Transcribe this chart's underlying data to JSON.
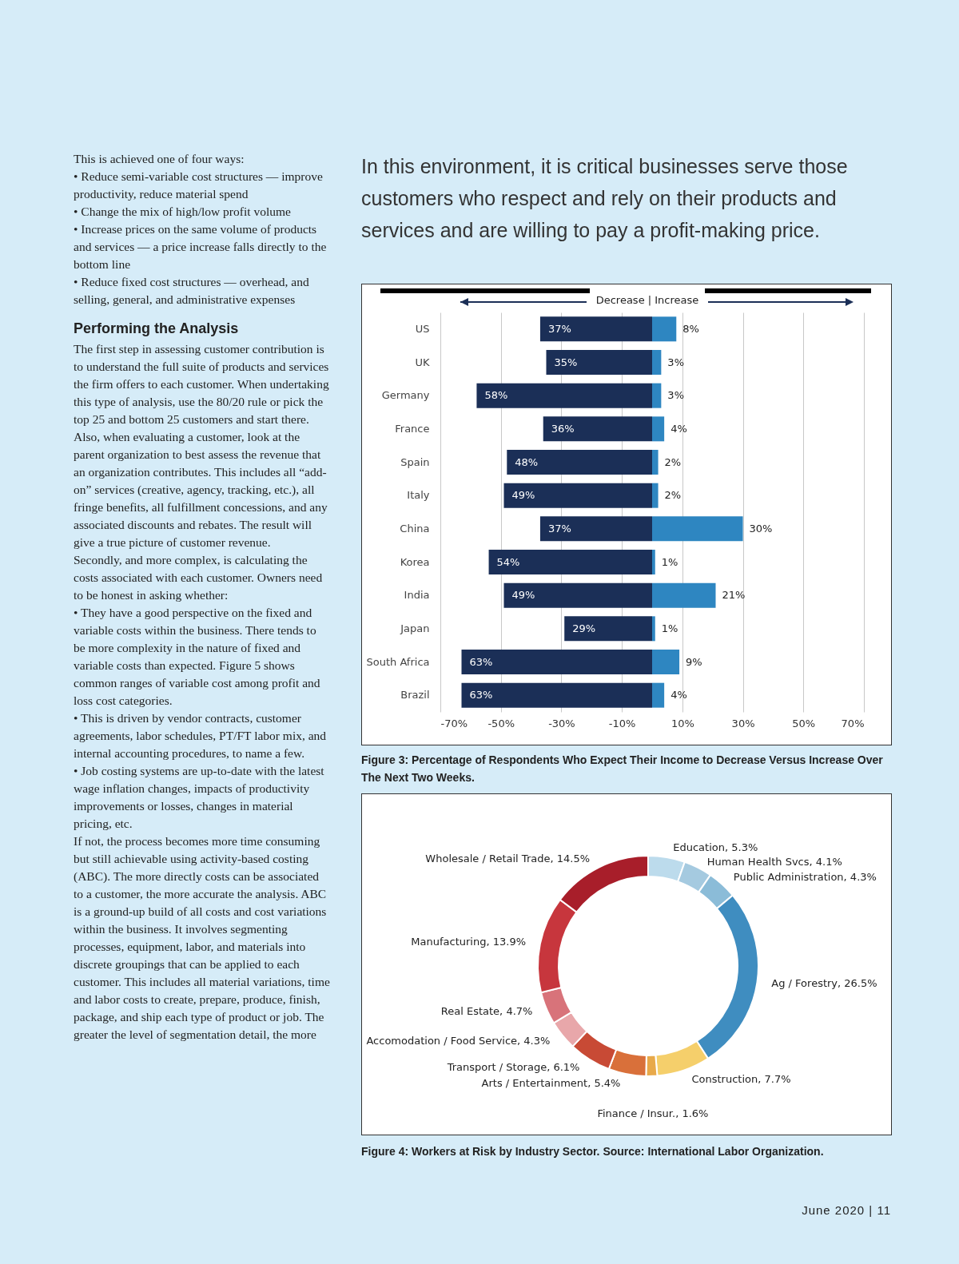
{
  "chart_data": [
    {
      "type": "other",
      "title": "In this environment, it is critical businesses serve those customers who respect and rely on their products and services and are willing to pay a profit-making price.",
      "annotations": [
        "This is achieved one of four ways:",
        "• Reduce semi-variable cost structures — improve productivity, reduce material spend",
        "• Change the mix of high/low profit volume",
        "• Increase prices on the same volume of products and services — a price increase falls directly to the bottom line",
        "• Reduce fixed cost structures — overhead, and selling, general, and administrative expenses",
        "Performing the Analysis",
        "The first step in assessing customer contribution is to understand the full suite of products and services the firm offers to each customer. When undertaking this type of analysis, use the 80/20 rule or pick the top 25 and bottom 25 customers and start there. Also, when evaluating a customer, look at the parent organization to best assess the revenue that an organization contributes. This includes all “add-on” services (creative, agency, tracking, etc.), all fringe benefits, all fulfillment concessions, and any associated discounts and rebates. The result will give a true picture of customer revenue.",
        "Secondly, and more complex, is calculating the costs associated with each customer. Owners need to be honest in asking whether:",
        "• They have a good perspective on the fixed and variable costs within the business. There tends to be more complexity in the nature of fixed and variable costs than expected. Figure 5 shows common ranges of variable cost among profit and loss cost categories.",
        "• This is driven by vendor contracts, customer agreements, labor schedules, PT/FT labor mix, and internal accounting procedures, to name a few.",
        "• Job costing systems are up-to-date with the latest wage inflation changes, impacts of productivity improvements or losses, changes in material pricing, etc.",
        "If not, the process becomes more time consuming but still achievable using activity-based costing (ABC). The more directly costs can be associated to a customer, the more accurate the analysis. ABC is a ground-up build of all costs and cost variations within the business. It involves segmenting processes, equipment, labor, and materials into discrete groupings that can be applied to each customer. This includes all material variations, time and labor costs to create, prepare, produce, finish, package, and ship each type of product or job. The greater the level of segmentation detail, the more",
        "June 2020 | 11"
      ]
    },
    {
      "type": "bar",
      "orientation": "horizontal",
      "title": "Decrease | Increase",
      "annotations": [
        "Figure 3: Percentage of Respondents Who Expect Their Income to Decrease Versus Increase Over The Next Two Weeks."
      ],
      "categories": [
        "US",
        "UK",
        "Germany",
        "France",
        "Spain",
        "Italy",
        "China",
        "Korea",
        "India",
        "Japan",
        "South Africa",
        "Brazil"
      ],
      "series": [
        {
          "color": "#1b2f57",
          "base": [
            -37,
            -35,
            -58,
            -36,
            -48,
            -49,
            -37,
            -54,
            -49,
            -29,
            -63,
            -63
          ],
          "values": [
            37,
            35,
            58,
            36,
            48,
            49,
            37,
            54,
            49,
            29,
            63,
            63
          ],
          "value_labels": [
            "37%",
            "35%",
            "58%",
            "36%",
            "48%",
            "49%",
            "37%",
            "54%",
            "49%",
            "29%",
            "63%",
            "63%"
          ]
        },
        {
          "color": "#2e86c1",
          "values": [
            8,
            3,
            3,
            4,
            2,
            2,
            30,
            1,
            21,
            1,
            9,
            4
          ],
          "value_labels": [
            "8%",
            "3%",
            "3%",
            "4%",
            "2%",
            "2%",
            "30%",
            "1%",
            "21%",
            "1%",
            "9%",
            "4%"
          ]
        }
      ],
      "xlim": [
        -70,
        70
      ],
      "xticks": [
        {
          "value": -70,
          "label": "-70%"
        },
        {
          "value": -50,
          "label": "-50%"
        },
        {
          "value": -30,
          "label": "-30%"
        },
        {
          "value": -10,
          "label": "-10%"
        },
        {
          "value": 10,
          "label": "10%"
        },
        {
          "value": 30,
          "label": "30%"
        },
        {
          "value": 50,
          "label": "50%"
        },
        {
          "value": 70,
          "label": "70%"
        }
      ],
      "grid": "x"
    },
    {
      "type": "donut",
      "title": "Figure 4: Workers at Risk by Industry Sector. Source: International Labor Organization.",
      "categories": [
        "Education",
        "Human Health Svcs",
        "Public Administration",
        "Ag / Forestry",
        "Construction",
        "Finance / Insur.",
        "Arts / Entertainment",
        "Transport / Storage",
        "Accomodation / Food Service",
        "Real Estate",
        "Manufacturing",
        "Wholesale / Retail Trade"
      ],
      "values": [
        5.3,
        4.1,
        4.3,
        26.5,
        7.7,
        1.6,
        5.4,
        6.1,
        4.3,
        4.7,
        13.9,
        14.5
      ],
      "value_labels": [
        "5.3%",
        "4.1%",
        "4.3%",
        "26.5%",
        "7.7%",
        "1.6%",
        "5.4%",
        "6.1%",
        "4.3%",
        "4.7%",
        "13.9%",
        "14.5%"
      ],
      "colors": [
        "#bcdbec",
        "#a5cae0",
        "#8bbcd8",
        "#3f8dc0",
        "#f5cf6b",
        "#e8a94a",
        "#d9703a",
        "#c84a35",
        "#e8a7aa",
        "#d8737a",
        "#c7363d",
        "#a81e2a"
      ]
    }
  ]
}
